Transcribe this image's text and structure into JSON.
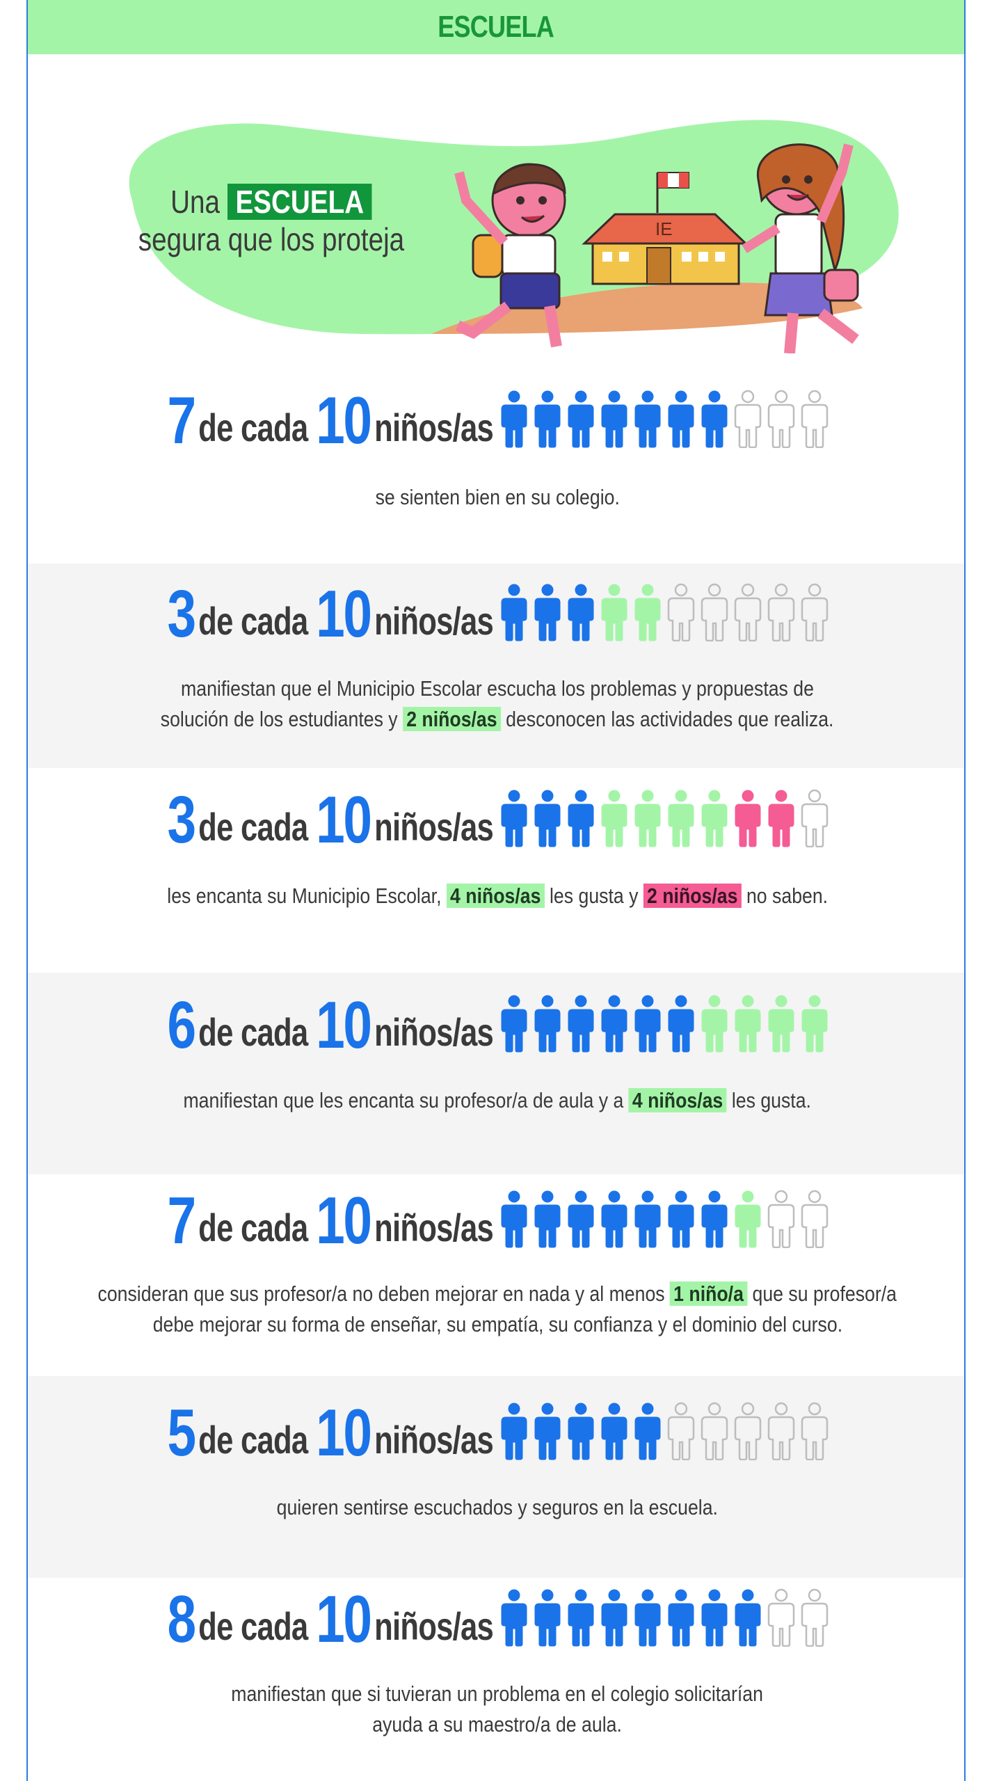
{
  "header": {
    "title": "ESCUELA"
  },
  "hero": {
    "text_pre": "Una",
    "text_highlight": "ESCUELA",
    "text_line2": "segura que los proteja",
    "building_label": "IE"
  },
  "common": {
    "of_each": "de cada",
    "total": "10",
    "kids": "niños/as"
  },
  "colors": {
    "blue": "#1a73e8",
    "green": "#a4f4a8",
    "pink": "#f45c93",
    "outline": "#bdbdbd",
    "title_green": "#18963a"
  },
  "stats": [
    {
      "number": "7",
      "icons": {
        "blue": 7,
        "green": 0,
        "pink": 0,
        "empty": 3
      },
      "lines": [
        {
          "parts": [
            {
              "text": "se sienten bien en su colegio."
            }
          ]
        }
      ]
    },
    {
      "number": "3",
      "icons": {
        "blue": 3,
        "green": 2,
        "pink": 0,
        "empty": 5
      },
      "lines": [
        {
          "parts": [
            {
              "text": "manifiestan que el Municipio Escolar escucha los problemas y propuestas de"
            }
          ]
        },
        {
          "parts": [
            {
              "text": "solución de los estudiantes y "
            },
            {
              "text": "2 niños/as",
              "tag": "g"
            },
            {
              "text": " desconocen las actividades que realiza."
            }
          ]
        }
      ]
    },
    {
      "number": "3",
      "icons": {
        "blue": 3,
        "green": 4,
        "pink": 2,
        "empty": 1
      },
      "lines": [
        {
          "parts": [
            {
              "text": "les encanta su Municipio Escolar, "
            },
            {
              "text": "4 niños/as",
              "tag": "g"
            },
            {
              "text": " les gusta y "
            },
            {
              "text": "2 niños/as",
              "tag": "p"
            },
            {
              "text": " no saben."
            }
          ]
        }
      ]
    },
    {
      "number": "6",
      "icons": {
        "blue": 6,
        "green": 4,
        "pink": 0,
        "empty": 0
      },
      "lines": [
        {
          "parts": [
            {
              "text": "manifiestan que les encanta su profesor/a de aula y a "
            },
            {
              "text": "4 niños/as",
              "tag": "g"
            },
            {
              "text": " les gusta."
            }
          ]
        }
      ]
    },
    {
      "number": "7",
      "icons": {
        "blue": 7,
        "green": 1,
        "pink": 0,
        "empty": 2
      },
      "lines": [
        {
          "parts": [
            {
              "text": "consideran que sus profesor/a no deben mejorar en nada y al menos "
            },
            {
              "text": "1 niño/a",
              "tag": "g"
            },
            {
              "text": " que su profesor/a"
            }
          ]
        },
        {
          "parts": [
            {
              "text": "debe mejorar su forma de enseñar, su empatía, su confianza y el dominio del curso."
            }
          ]
        }
      ]
    },
    {
      "number": "5",
      "icons": {
        "blue": 5,
        "green": 0,
        "pink": 0,
        "empty": 5
      },
      "lines": [
        {
          "parts": [
            {
              "text": "quieren sentirse escuchados y seguros en la escuela."
            }
          ]
        }
      ]
    },
    {
      "number": "8",
      "icons": {
        "blue": 8,
        "green": 0,
        "pink": 0,
        "empty": 2
      },
      "lines": [
        {
          "parts": [
            {
              "text": "manifiestan que si tuvieran un problema en el colegio solicitarían"
            }
          ]
        },
        {
          "parts": [
            {
              "text": "ayuda a su maestro/a de aula."
            }
          ]
        }
      ]
    }
  ]
}
